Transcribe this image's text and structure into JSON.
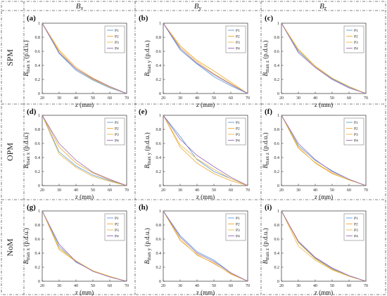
{
  "figure": {
    "column_headers": [
      "B",
      "B",
      "B"
    ],
    "column_subscripts": [
      "x",
      "y",
      "z"
    ],
    "row_labels": [
      "SPM",
      "OPM",
      "NoM"
    ],
    "panel_letters": [
      "(a)",
      "(b)",
      "(c)",
      "(d)",
      "(e)",
      "(f)",
      "(g)",
      "(h)",
      "(i)"
    ],
    "xlabel": "z (mm)",
    "ylabel_prefix": "B",
    "ylabel_sub": [
      "max x",
      "max y",
      "max z"
    ],
    "ylabel_suffix": "(p.d.u.)",
    "legend": [
      "P1",
      "P2",
      "P3",
      "P4"
    ],
    "colors": {
      "P1": "#5b9bd5",
      "P2": "#f0a830",
      "P3": "#e8b84a",
      "P4": "#9a6bb8"
    }
  },
  "chart_data": [
    {
      "type": "line",
      "panel": "(a)",
      "x": [
        20,
        30,
        40,
        50,
        60,
        70
      ],
      "xlim": [
        20,
        70
      ],
      "ylim": [
        0,
        1
      ],
      "xticks": [
        20,
        30,
        40,
        50,
        60,
        70
      ],
      "yticks": [
        0,
        0.2,
        0.4,
        0.6,
        0.8,
        1
      ],
      "legend_position": "top-right",
      "series": [
        {
          "name": "P1",
          "values": [
            1.0,
            0.57,
            0.33,
            0.19,
            0.08,
            0.0
          ]
        },
        {
          "name": "P2",
          "values": [
            1.0,
            0.62,
            0.37,
            0.22,
            0.1,
            0.0
          ]
        },
        {
          "name": "P3",
          "values": [
            1.0,
            0.6,
            0.35,
            0.2,
            0.09,
            0.0
          ]
        },
        {
          "name": "P4",
          "values": [
            1.0,
            0.58,
            0.35,
            0.21,
            0.1,
            0.0
          ]
        }
      ]
    },
    {
      "type": "line",
      "panel": "(b)",
      "x": [
        20,
        30,
        40,
        50,
        60,
        70
      ],
      "xlim": [
        20,
        70
      ],
      "ylim": [
        0,
        1
      ],
      "xticks": [
        20,
        30,
        40,
        50,
        60,
        70
      ],
      "yticks": [
        0,
        0.2,
        0.4,
        0.6,
        0.8,
        1
      ],
      "legend_position": "top-right",
      "series": [
        {
          "name": "P1",
          "values": [
            1.0,
            0.62,
            0.42,
            0.24,
            0.11,
            0.0
          ]
        },
        {
          "name": "P2",
          "values": [
            1.0,
            0.68,
            0.47,
            0.32,
            0.16,
            0.0
          ]
        },
        {
          "name": "P3",
          "values": [
            1.0,
            0.66,
            0.45,
            0.28,
            0.14,
            0.0
          ]
        },
        {
          "name": "P4",
          "values": [
            1.0,
            0.64,
            0.43,
            0.27,
            0.13,
            0.0
          ]
        }
      ]
    },
    {
      "type": "line",
      "panel": "(c)",
      "x": [
        20,
        30,
        40,
        50,
        60,
        70
      ],
      "xlim": [
        20,
        70
      ],
      "ylim": [
        0,
        1
      ],
      "xticks": [
        20,
        30,
        40,
        50,
        60,
        70
      ],
      "yticks": [
        0,
        0.2,
        0.4,
        0.6,
        0.8,
        1
      ],
      "legend_position": "top-right",
      "series": [
        {
          "name": "P1",
          "values": [
            1.0,
            0.6,
            0.38,
            0.21,
            0.09,
            0.0
          ]
        },
        {
          "name": "P2",
          "values": [
            1.0,
            0.63,
            0.39,
            0.22,
            0.1,
            0.0
          ]
        },
        {
          "name": "P3",
          "values": [
            1.0,
            0.62,
            0.38,
            0.22,
            0.1,
            0.0
          ]
        },
        {
          "name": "P4",
          "values": [
            1.0,
            0.58,
            0.37,
            0.2,
            0.08,
            0.0
          ]
        }
      ]
    },
    {
      "type": "line",
      "panel": "(d)",
      "x": [
        20,
        30,
        40,
        50,
        60,
        70
      ],
      "xlim": [
        20,
        70
      ],
      "ylim": [
        0,
        1
      ],
      "xticks": [
        20,
        30,
        40,
        50,
        60,
        70
      ],
      "yticks": [
        0,
        0.2,
        0.4,
        0.6,
        0.8,
        1
      ],
      "legend_position": "top-right",
      "series": [
        {
          "name": "P1",
          "values": [
            1.0,
            0.48,
            0.28,
            0.15,
            0.07,
            0.0
          ]
        },
        {
          "name": "P2",
          "values": [
            1.0,
            0.55,
            0.32,
            0.18,
            0.08,
            0.0
          ]
        },
        {
          "name": "P3",
          "values": [
            1.0,
            0.45,
            0.26,
            0.13,
            0.06,
            0.0
          ]
        },
        {
          "name": "P4",
          "values": [
            1.0,
            0.6,
            0.36,
            0.19,
            0.09,
            0.0
          ]
        }
      ]
    },
    {
      "type": "line",
      "panel": "(e)",
      "x": [
        20,
        30,
        40,
        50,
        60,
        70
      ],
      "xlim": [
        20,
        70
      ],
      "ylim": [
        0,
        1
      ],
      "xticks": [
        20,
        30,
        40,
        50,
        60,
        70
      ],
      "yticks": [
        0,
        0.2,
        0.4,
        0.6,
        0.8,
        1
      ],
      "legend_position": "top-right",
      "series": [
        {
          "name": "P1",
          "values": [
            1.0,
            0.7,
            0.37,
            0.2,
            0.1,
            0.0
          ]
        },
        {
          "name": "P2",
          "values": [
            1.0,
            0.55,
            0.32,
            0.17,
            0.07,
            0.0
          ]
        },
        {
          "name": "P3",
          "values": [
            1.0,
            0.58,
            0.38,
            0.23,
            0.1,
            0.0
          ]
        },
        {
          "name": "P4",
          "values": [
            1.0,
            0.66,
            0.43,
            0.27,
            0.12,
            0.0
          ]
        }
      ]
    },
    {
      "type": "line",
      "panel": "(f)",
      "x": [
        20,
        30,
        40,
        50,
        60,
        70
      ],
      "xlim": [
        20,
        70
      ],
      "ylim": [
        0,
        1
      ],
      "xticks": [
        20,
        30,
        40,
        50,
        60,
        70
      ],
      "yticks": [
        0,
        0.2,
        0.4,
        0.6,
        0.8,
        1
      ],
      "legend_position": "top-right",
      "series": [
        {
          "name": "P1",
          "values": [
            1.0,
            0.57,
            0.36,
            0.21,
            0.09,
            0.0
          ]
        },
        {
          "name": "P2",
          "values": [
            1.0,
            0.53,
            0.33,
            0.18,
            0.08,
            0.0
          ]
        },
        {
          "name": "P3",
          "values": [
            1.0,
            0.55,
            0.32,
            0.17,
            0.08,
            0.0
          ]
        },
        {
          "name": "P4",
          "values": [
            1.0,
            0.6,
            0.37,
            0.2,
            0.09,
            0.0
          ]
        }
      ]
    },
    {
      "type": "line",
      "panel": "(g)",
      "x": [
        20,
        30,
        40,
        50,
        60,
        70
      ],
      "xlim": [
        20,
        70
      ],
      "ylim": [
        0,
        1
      ],
      "xticks": [
        20,
        30,
        40,
        50,
        60,
        70
      ],
      "yticks": [
        0,
        0.2,
        0.4,
        0.6,
        0.8,
        1
      ],
      "legend_position": "top-right",
      "series": [
        {
          "name": "P1",
          "values": [
            1.0,
            0.5,
            0.27,
            0.15,
            0.06,
            0.0
          ]
        },
        {
          "name": "P2",
          "values": [
            1.0,
            0.45,
            0.28,
            0.15,
            0.06,
            0.0
          ]
        },
        {
          "name": "P3",
          "values": [
            1.0,
            0.47,
            0.29,
            0.15,
            0.07,
            0.0
          ]
        },
        {
          "name": "P4",
          "values": [
            1.0,
            0.53,
            0.28,
            0.14,
            0.06,
            0.0
          ]
        }
      ]
    },
    {
      "type": "line",
      "panel": "(h)",
      "x": [
        20,
        30,
        40,
        50,
        60,
        70
      ],
      "xlim": [
        20,
        70
      ],
      "ylim": [
        0,
        1
      ],
      "xticks": [
        20,
        30,
        40,
        50,
        60,
        70
      ],
      "yticks": [
        0,
        0.2,
        0.4,
        0.6,
        0.8,
        1
      ],
      "legend_position": "top-right",
      "series": [
        {
          "name": "P1",
          "values": [
            1.0,
            0.65,
            0.42,
            0.3,
            0.12,
            0.0
          ]
        },
        {
          "name": "P2",
          "values": [
            1.0,
            0.58,
            0.38,
            0.25,
            0.11,
            0.0
          ]
        },
        {
          "name": "P3",
          "values": [
            1.0,
            0.6,
            0.37,
            0.26,
            0.1,
            0.0
          ]
        },
        {
          "name": "P4",
          "values": [
            1.0,
            0.63,
            0.4,
            0.28,
            0.12,
            0.0
          ]
        }
      ]
    },
    {
      "type": "line",
      "panel": "(i)",
      "x": [
        20,
        30,
        40,
        50,
        60,
        70
      ],
      "xlim": [
        20,
        70
      ],
      "ylim": [
        0,
        1
      ],
      "xticks": [
        20,
        30,
        40,
        50,
        60,
        70
      ],
      "yticks": [
        0,
        0.2,
        0.4,
        0.6,
        0.8,
        1
      ],
      "legend_position": "top-right",
      "series": [
        {
          "name": "P1",
          "values": [
            1.0,
            0.56,
            0.33,
            0.18,
            0.08,
            0.0
          ]
        },
        {
          "name": "P2",
          "values": [
            1.0,
            0.55,
            0.32,
            0.17,
            0.07,
            0.0
          ]
        },
        {
          "name": "P3",
          "values": [
            1.0,
            0.5,
            0.3,
            0.16,
            0.07,
            0.0
          ]
        },
        {
          "name": "P4",
          "values": [
            1.0,
            0.57,
            0.34,
            0.19,
            0.08,
            0.0
          ]
        }
      ]
    }
  ]
}
